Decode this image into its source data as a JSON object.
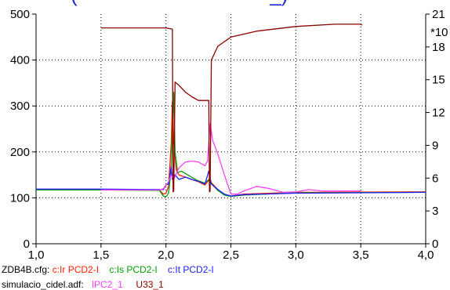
{
  "title_fragment": "(                                  _)",
  "right_axis_exponent": "*10",
  "chart_data": {
    "type": "line",
    "x_ticks": [
      "1,0",
      "1,5",
      "2,0",
      "2,5",
      "3,0",
      "3,5",
      "4,0"
    ],
    "y_left_ticks": [
      "0",
      "100",
      "200",
      "300",
      "400",
      "500"
    ],
    "y_right_ticks": [
      "0",
      "3",
      "6",
      "9",
      "12",
      "15",
      "18",
      "21"
    ],
    "xlim": [
      1.0,
      4.0
    ],
    "ylim_left": [
      0,
      500
    ],
    "ylim_right": [
      0,
      21
    ],
    "grid": true,
    "series": [
      {
        "name": "c:Ir PCD2-I",
        "color": "#ff2000",
        "axis": "left",
        "points": [
          [
            1.0,
            117
          ],
          [
            1.5,
            117
          ],
          [
            1.95,
            117
          ],
          [
            1.98,
            108
          ],
          [
            2.0,
            110
          ],
          [
            2.02,
            125
          ],
          [
            2.04,
            215
          ],
          [
            2.05,
            310
          ],
          [
            2.06,
            220
          ],
          [
            2.08,
            160
          ],
          [
            2.1,
            150
          ],
          [
            2.15,
            145
          ],
          [
            2.2,
            140
          ],
          [
            2.25,
            135
          ],
          [
            2.3,
            128
          ],
          [
            2.33,
            138
          ],
          [
            2.36,
            130
          ],
          [
            2.4,
            118
          ],
          [
            2.45,
            108
          ],
          [
            2.5,
            104
          ],
          [
            2.6,
            108
          ],
          [
            3.0,
            112
          ],
          [
            4.0,
            113
          ]
        ]
      },
      {
        "name": "c:Is PCD2-I",
        "color": "#00a000",
        "axis": "left",
        "points": [
          [
            1.0,
            117
          ],
          [
            1.5,
            117
          ],
          [
            1.95,
            116
          ],
          [
            1.98,
            104
          ],
          [
            2.0,
            102
          ],
          [
            2.02,
            110
          ],
          [
            2.04,
            160
          ],
          [
            2.06,
            330
          ],
          [
            2.07,
            200
          ],
          [
            2.09,
            155
          ],
          [
            2.12,
            158
          ],
          [
            2.18,
            148
          ],
          [
            2.24,
            138
          ],
          [
            2.3,
            132
          ],
          [
            2.33,
            140
          ],
          [
            2.36,
            128
          ],
          [
            2.4,
            116
          ],
          [
            2.45,
            106
          ],
          [
            2.5,
            103
          ],
          [
            2.6,
            106
          ],
          [
            3.0,
            111
          ],
          [
            4.0,
            112
          ]
        ]
      },
      {
        "name": "c:It PCD2-I",
        "color": "#2020ff",
        "axis": "left",
        "points": [
          [
            1.0,
            119
          ],
          [
            1.5,
            119
          ],
          [
            1.98,
            118
          ],
          [
            2.0,
            128
          ],
          [
            2.02,
            130
          ],
          [
            2.04,
            168
          ],
          [
            2.05,
            140
          ],
          [
            2.07,
            150
          ],
          [
            2.1,
            140
          ],
          [
            2.15,
            145
          ],
          [
            2.2,
            140
          ],
          [
            2.25,
            136
          ],
          [
            2.3,
            130
          ],
          [
            2.33,
            158
          ],
          [
            2.35,
            130
          ],
          [
            2.4,
            118
          ],
          [
            2.45,
            108
          ],
          [
            2.5,
            104
          ],
          [
            2.6,
            107
          ],
          [
            3.0,
            110
          ],
          [
            4.0,
            112
          ]
        ]
      },
      {
        "name": "IPC2_1",
        "color": "#ff40ff",
        "axis": "left",
        "points": [
          [
            1.5,
            117
          ],
          [
            1.95,
            117
          ],
          [
            1.98,
            120
          ],
          [
            2.02,
            135
          ],
          [
            2.04,
            150
          ],
          [
            2.06,
            140
          ],
          [
            2.1,
            165
          ],
          [
            2.15,
            178
          ],
          [
            2.2,
            180
          ],
          [
            2.25,
            178
          ],
          [
            2.3,
            170
          ],
          [
            2.32,
            180
          ],
          [
            2.34,
            262
          ],
          [
            2.36,
            225
          ],
          [
            2.4,
            195
          ],
          [
            2.45,
            150
          ],
          [
            2.5,
            108
          ],
          [
            2.55,
            108
          ],
          [
            2.6,
            115
          ],
          [
            2.7,
            125
          ],
          [
            2.8,
            120
          ],
          [
            2.9,
            112
          ],
          [
            3.0,
            113
          ],
          [
            3.1,
            118
          ],
          [
            3.2,
            115
          ],
          [
            3.5,
            115
          ]
        ]
      },
      {
        "name": "U33_1",
        "color": "#8b0000",
        "axis": "left",
        "points": [
          [
            1.5,
            470
          ],
          [
            2.0,
            470
          ],
          [
            2.05,
            467
          ],
          [
            2.055,
            113
          ],
          [
            2.06,
            115
          ],
          [
            2.07,
            352
          ],
          [
            2.1,
            345
          ],
          [
            2.15,
            330
          ],
          [
            2.2,
            320
          ],
          [
            2.25,
            312
          ],
          [
            2.33,
            312
          ],
          [
            2.335,
            113
          ],
          [
            2.34,
            115
          ],
          [
            2.35,
            400
          ],
          [
            2.4,
            430
          ],
          [
            2.5,
            450
          ],
          [
            2.7,
            463
          ],
          [
            3.0,
            473
          ],
          [
            3.3,
            478
          ],
          [
            3.5,
            478
          ],
          [
            3.51,
            476
          ]
        ]
      }
    ]
  },
  "legend": {
    "line1": [
      {
        "text": "ZDB4B.cfg:",
        "color": "#000000"
      },
      {
        "text": " c:Ir PCD2-I",
        "color": "#ff2000"
      },
      {
        "text": "    c:Is PCD2-I",
        "color": "#00a000"
      },
      {
        "text": "    c:It PCD2-I",
        "color": "#2020ff"
      }
    ],
    "line2": [
      {
        "text": "simulacio_cidel.adf:",
        "color": "#000000"
      },
      {
        "text": "   IPC2_1",
        "color": "#ff40ff"
      },
      {
        "text": "     U33_1",
        "color": "#8b0000"
      }
    ]
  }
}
